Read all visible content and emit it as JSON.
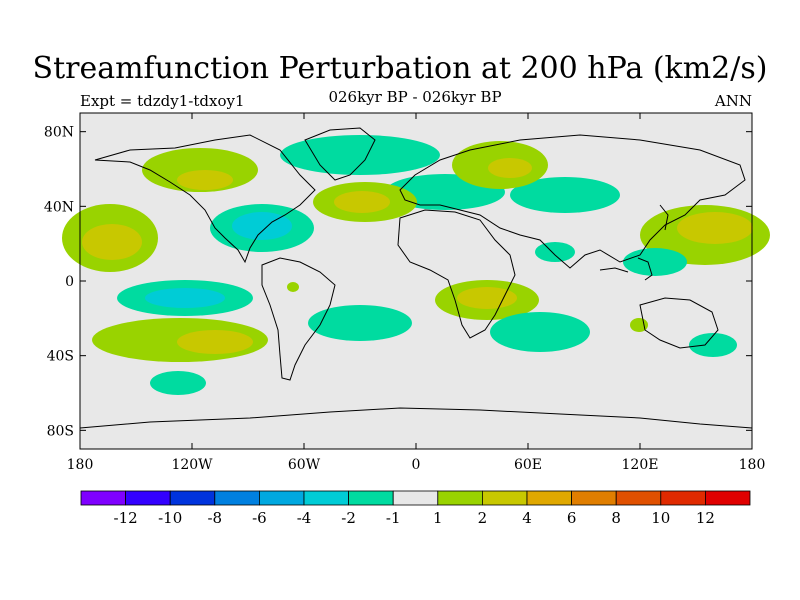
{
  "title": "Streamfunction Perturbation at 200 hPa (km2/s)",
  "subtitle": "026kyr BP - 026kyr BP",
  "expt_label": "Expt = tdzdy1-tdxoy1",
  "period_label": "ANN",
  "lat_ticks": [
    "80N",
    "40N",
    "0",
    "40S",
    "80S"
  ],
  "lon_ticks": [
    "180",
    "120W",
    "60W",
    "0",
    "60E",
    "120E",
    "180"
  ],
  "colorbar": {
    "colors": [
      "#7f00ff",
      "#3300ff",
      "#0033dd",
      "#0080e0",
      "#00a8e0",
      "#00ccd6",
      "#00dba0",
      "#e8e8e8",
      "#99d300",
      "#c8c800",
      "#e0a800",
      "#e07e00",
      "#e05000",
      "#e02a00",
      "#e00000"
    ],
    "labels": [
      "-12",
      "-10",
      "-8",
      "-6",
      "-4",
      "-2",
      "-1",
      "1",
      "2",
      "4",
      "6",
      "8",
      "10",
      "12"
    ]
  },
  "legend_colors": {
    "land_ocean_background": "#e8e8e8",
    "positive_1_2": "#99d300",
    "positive_2_4": "#c8c800",
    "negative_1_2": "#00dba0",
    "negative_2_4": "#00ccd6"
  }
}
